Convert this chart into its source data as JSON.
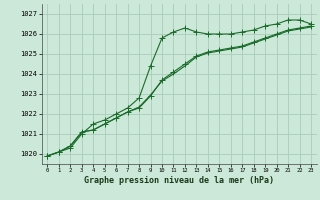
{
  "title": "Graphe pression niveau de la mer (hPa)",
  "bg_color": "#cce8d8",
  "grid_color": "#aaccbb",
  "line_color": "#1a6b2a",
  "marker_color": "#1a6b2a",
  "xlim": [
    -0.5,
    23.5
  ],
  "ylim": [
    1019.5,
    1027.5
  ],
  "yticks": [
    1020,
    1021,
    1022,
    1023,
    1024,
    1025,
    1026,
    1027
  ],
  "xticks": [
    0,
    1,
    2,
    3,
    4,
    5,
    6,
    7,
    8,
    9,
    10,
    11,
    12,
    13,
    14,
    15,
    16,
    17,
    18,
    19,
    20,
    21,
    22,
    23
  ],
  "series1_x": [
    0,
    1,
    2,
    3,
    4,
    5,
    6,
    7,
    8,
    9,
    10,
    11,
    12,
    13,
    14,
    15,
    16,
    17,
    18,
    19,
    20,
    21,
    22,
    23
  ],
  "series1_y": [
    1019.9,
    1020.1,
    1020.3,
    1021.0,
    1021.5,
    1021.7,
    1022.0,
    1022.3,
    1022.8,
    1024.4,
    1025.8,
    1026.1,
    1026.3,
    1026.1,
    1026.0,
    1026.0,
    1026.0,
    1026.1,
    1026.2,
    1026.4,
    1026.5,
    1026.7,
    1026.7,
    1026.5
  ],
  "series2_x": [
    0,
    1,
    2,
    3,
    4,
    5,
    6,
    7,
    8,
    9,
    10,
    11,
    12,
    13,
    14,
    15,
    16,
    17,
    18,
    19,
    20,
    21,
    22,
    23
  ],
  "series2_y": [
    1019.9,
    1020.1,
    1020.4,
    1021.1,
    1021.2,
    1021.5,
    1021.8,
    1022.1,
    1022.3,
    1022.9,
    1023.7,
    1024.1,
    1024.5,
    1024.9,
    1025.1,
    1025.2,
    1025.3,
    1025.4,
    1025.6,
    1025.8,
    1026.0,
    1026.2,
    1026.3,
    1026.4
  ],
  "series3_x": [
    0,
    1,
    2,
    3,
    4,
    5,
    6,
    7,
    8,
    9,
    10,
    11,
    12,
    13,
    14,
    15,
    16,
    17,
    18,
    19,
    20,
    21,
    22,
    23
  ],
  "series3_y": [
    1019.9,
    1020.1,
    1020.4,
    1021.1,
    1021.2,
    1021.5,
    1021.8,
    1022.1,
    1022.35,
    1022.95,
    1023.65,
    1024.0,
    1024.4,
    1024.85,
    1025.05,
    1025.15,
    1025.25,
    1025.35,
    1025.55,
    1025.75,
    1025.95,
    1026.15,
    1026.25,
    1026.35
  ]
}
